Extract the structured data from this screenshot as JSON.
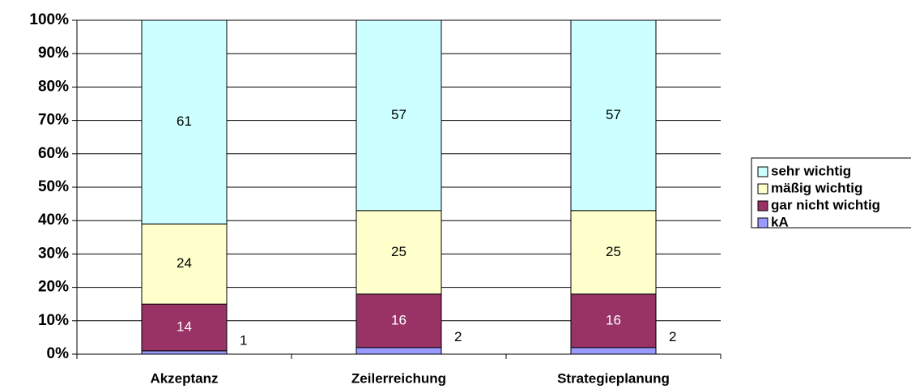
{
  "chart_data": {
    "type": "stacked_bar_100",
    "categories": [
      "Akzeptanz",
      "Zeilerreichung",
      "Strategieplanung"
    ],
    "series": [
      {
        "name": "kA",
        "color": "#9999ff",
        "values": [
          1,
          2,
          2
        ]
      },
      {
        "name": "gar nicht wichtig",
        "color": "#993366",
        "values": [
          14,
          16,
          16
        ]
      },
      {
        "name": "mäßig wichtig",
        "color": "#ffffcc",
        "values": [
          24,
          25,
          25
        ]
      },
      {
        "name": "sehr wichtig",
        "color": "#ccffff",
        "values": [
          61,
          57,
          57
        ]
      }
    ],
    "ylim": [
      0,
      100
    ],
    "yticks": [
      {
        "value": 0,
        "label": "0%"
      },
      {
        "value": 10,
        "label": "10%"
      },
      {
        "value": 20,
        "label": "20%"
      },
      {
        "value": 30,
        "label": "30%"
      },
      {
        "value": 40,
        "label": "40%"
      },
      {
        "value": 50,
        "label": "50%"
      },
      {
        "value": 60,
        "label": "60%"
      },
      {
        "value": 70,
        "label": "70%"
      },
      {
        "value": 80,
        "label": "80%"
      },
      {
        "value": 90,
        "label": "90%"
      },
      {
        "value": 100,
        "label": "100%"
      }
    ],
    "grid": true,
    "legend": "right"
  }
}
